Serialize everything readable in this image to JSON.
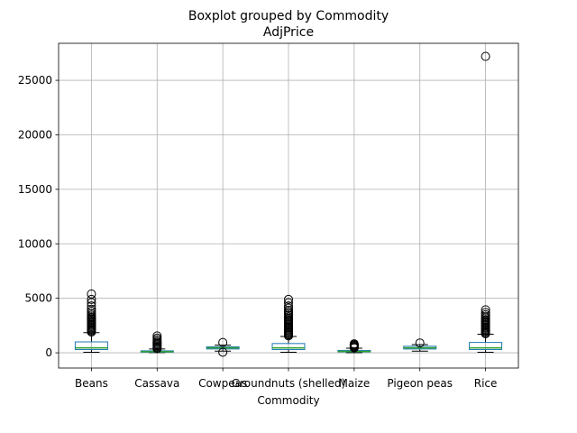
{
  "chart_data": {
    "type": "boxplot",
    "title": "Boxplot grouped by Commodity",
    "subtitle": "AdjPrice",
    "xlabel": "Commodity",
    "ylabel": "",
    "ylim": [
      -1400,
      28400
    ],
    "yticks": [
      0,
      5000,
      10000,
      15000,
      20000,
      25000
    ],
    "ytick_labels": [
      "0",
      "5000",
      "10000",
      "15000",
      "20000",
      "25000"
    ],
    "grid": true,
    "categories": [
      "Beans",
      "Cassava",
      "Cowpeas",
      "Groundnuts (shelled)",
      "Maize",
      "Pigeon peas",
      "Rice"
    ],
    "boxes": [
      {
        "category": "Beans",
        "whisker_low": 50,
        "q1": 300,
        "median": 450,
        "q3": 1000,
        "whisker_high": 1850,
        "outliers": [
          1900,
          2000,
          2100,
          2200,
          2300,
          2400,
          2500,
          2600,
          2700,
          2800,
          2900,
          3000,
          3100,
          3200,
          3300,
          3450,
          3600,
          3800,
          4000,
          4300,
          4600,
          4900,
          5400
        ]
      },
      {
        "category": "Cassava",
        "whisker_low": 20,
        "q1": 60,
        "median": 100,
        "q3": 180,
        "whisker_high": 350,
        "outliers": [
          380,
          450,
          550,
          650,
          750,
          850,
          950,
          1050,
          1200,
          1350,
          1550
        ]
      },
      {
        "category": "Cowpeas",
        "whisker_low": 150,
        "q1": 350,
        "median": 450,
        "q3": 550,
        "whisker_high": 700,
        "outliers": [
          50,
          950
        ]
      },
      {
        "category": "Groundnuts (shelled)",
        "whisker_low": 50,
        "q1": 300,
        "median": 450,
        "q3": 850,
        "whisker_high": 1500,
        "outliers": [
          1550,
          1650,
          1750,
          1850,
          1950,
          2050,
          2150,
          2250,
          2350,
          2450,
          2550,
          2650,
          2750,
          2850,
          2950,
          3050,
          3150,
          3300,
          3450,
          3600,
          3750,
          3900,
          4100,
          4300,
          4600,
          4900
        ]
      },
      {
        "category": "Maize",
        "whisker_low": 10,
        "q1": 80,
        "median": 120,
        "q3": 220,
        "whisker_high": 420,
        "outliers": [
          450,
          520,
          600,
          680,
          750,
          820
        ]
      },
      {
        "category": "Pigeon peas",
        "whisker_low": 150,
        "q1": 350,
        "median": 450,
        "q3": 600,
        "whisker_high": 750,
        "outliers": [
          900
        ]
      },
      {
        "category": "Rice",
        "whisker_low": 50,
        "q1": 300,
        "median": 450,
        "q3": 950,
        "whisker_high": 1700,
        "outliers": [
          1750,
          1850,
          1950,
          2050,
          2150,
          2250,
          2350,
          2450,
          2550,
          2650,
          2750,
          2850,
          2950,
          3050,
          3200,
          3350,
          3500,
          3700,
          3950,
          27200
        ]
      }
    ],
    "colors": {
      "box": "#1f77b4",
      "median": "#2ca02c",
      "whisker": "#000000",
      "grid": "#b0b0b0",
      "axes": "#000000"
    }
  }
}
